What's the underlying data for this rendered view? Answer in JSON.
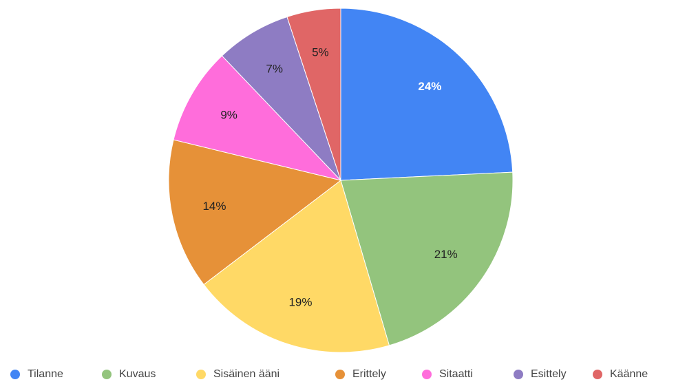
{
  "chart_data": {
    "type": "pie",
    "categories": [
      "Tilanne",
      "Kuvaus",
      "Sisäinen ääni",
      "Erittely",
      "Sitaatti",
      "Esittely",
      "Käänne"
    ],
    "values": [
      24,
      21,
      19,
      14,
      9,
      7,
      5
    ],
    "value_labels": [
      "24%",
      "21%",
      "19%",
      "14%",
      "9%",
      "7%",
      "5%"
    ],
    "colors": [
      "#4285f4",
      "#93c47d",
      "#ffd966",
      "#e69138",
      "#ff6ddb",
      "#8e7cc3",
      "#e06666"
    ],
    "legend": "bottom"
  }
}
